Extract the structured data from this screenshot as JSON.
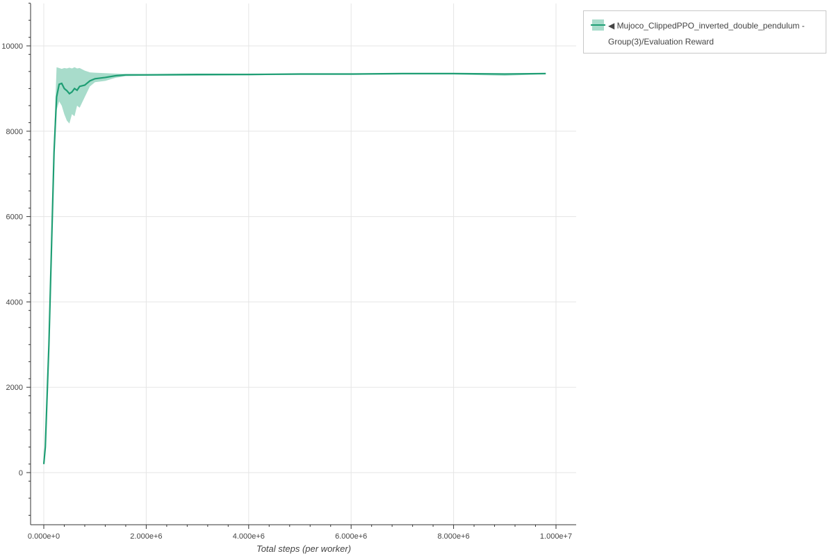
{
  "chart_data": {
    "type": "line",
    "title": "",
    "xlabel": "Total steps (per worker)",
    "ylabel": "",
    "xlim": [
      -200000,
      10400000
    ],
    "ylim": [
      -1220,
      11000
    ],
    "grid": true,
    "legend_position": "top-right outside",
    "x_ticks": [
      0,
      2000000,
      4000000,
      6000000,
      8000000,
      10000000
    ],
    "x_tick_labels": [
      "0.000e+0",
      "2.000e+6",
      "4.000e+6",
      "6.000e+6",
      "8.000e+6",
      "1.000e+7"
    ],
    "y_ticks": [
      0,
      2000,
      4000,
      6000,
      8000,
      10000
    ],
    "y_tick_labels": [
      "0",
      "2000",
      "4000",
      "6000",
      "8000",
      "10000"
    ],
    "series": [
      {
        "name": "◀ Mujoco_ClippedPPO_inverted_double_pendulum - Group(3)/Evaluation Reward",
        "color": "#1f9e74",
        "band_color": "#a8dccb",
        "x": [
          0,
          30000,
          100000,
          200000,
          250000,
          300000,
          350000,
          400000,
          450000,
          500000,
          550000,
          600000,
          650000,
          700000,
          800000,
          900000,
          1000000,
          1200000,
          1400000,
          1600000,
          2000000,
          3000000,
          4000000,
          5000000,
          6000000,
          7000000,
          8000000,
          9000000,
          9800000
        ],
        "y": [
          200,
          600,
          3000,
          7500,
          8800,
          9100,
          9120,
          9000,
          8950,
          8880,
          8920,
          9000,
          8960,
          9050,
          9080,
          9180,
          9230,
          9260,
          9300,
          9320,
          9320,
          9330,
          9330,
          9340,
          9340,
          9350,
          9350,
          9340,
          9350
        ],
        "upper": [
          200,
          600,
          3000,
          7800,
          9500,
          9480,
          9460,
          9480,
          9470,
          9490,
          9470,
          9500,
          9470,
          9480,
          9420,
          9380,
          9370,
          9360,
          9350,
          9340,
          9340,
          9345,
          9345,
          9350,
          9355,
          9360,
          9360,
          9355,
          9355
        ],
        "lower": [
          200,
          600,
          3000,
          7300,
          8500,
          8700,
          8600,
          8400,
          8250,
          8180,
          8400,
          8350,
          8600,
          8550,
          8800,
          9050,
          9150,
          9180,
          9250,
          9290,
          9300,
          9300,
          9310,
          9320,
          9320,
          9330,
          9330,
          9300,
          9340
        ]
      }
    ]
  }
}
